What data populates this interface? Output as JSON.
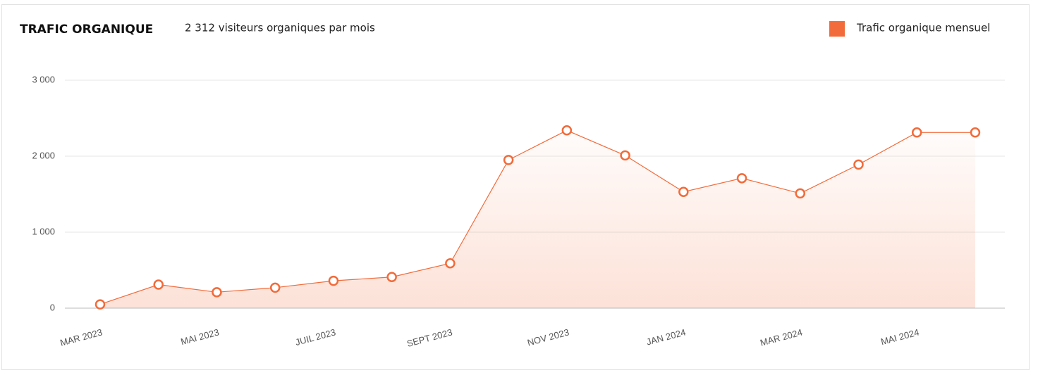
{
  "chart_data": {
    "type": "line",
    "title": "TRAFIC ORGANIQUE",
    "subtitle": "2 312 visiteurs organiques par mois",
    "categories": [
      "MAR 2023",
      null,
      "MAI 2023",
      null,
      "JUIL 2023",
      null,
      "SEPT 2023",
      null,
      "NOV 2023",
      null,
      "JAN 2024",
      null,
      "MAR 2024",
      null,
      "MAI 2024",
      null
    ],
    "series": [
      {
        "name": "Trafic organique mensuel",
        "color": "#f26b3a",
        "values": [
          50,
          310,
          210,
          270,
          360,
          410,
          590,
          1950,
          2340,
          2010,
          1530,
          1710,
          1510,
          1890,
          2312,
          2312
        ]
      }
    ],
    "ylim": [
      0,
      3000
    ],
    "yticks": [
      {
        "value": 0,
        "label": "0"
      },
      {
        "value": 1000,
        "label": "1 000"
      },
      {
        "value": 2000,
        "label": "2 000"
      },
      {
        "value": 3000,
        "label": "3 000"
      }
    ],
    "grid": true,
    "legend": "top-right"
  }
}
